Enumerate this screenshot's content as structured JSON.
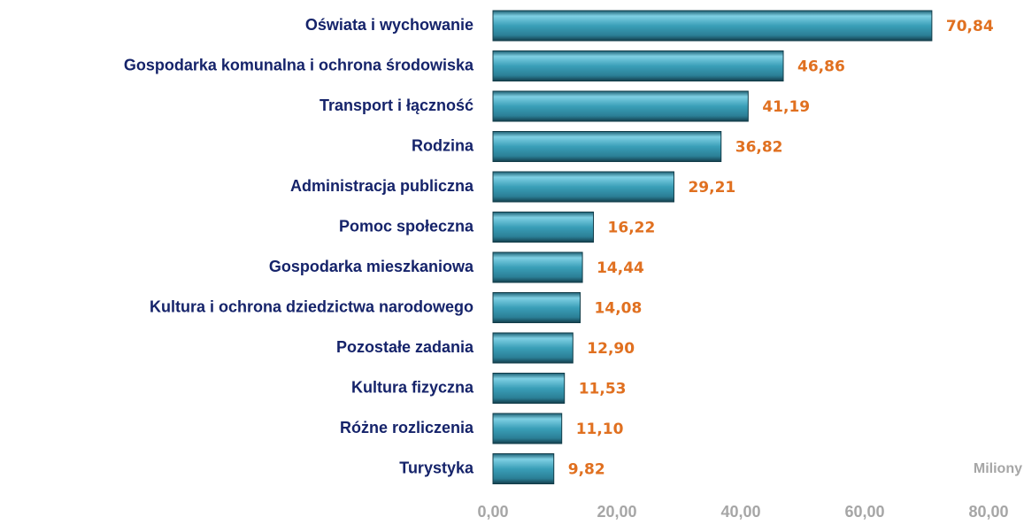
{
  "chart_data": {
    "type": "barh",
    "categories": [
      "Oświata i wychowanie",
      "Gospodarka komunalna i ochrona środowiska",
      "Transport i łączność",
      "Rodzina",
      "Administracja publiczna",
      "Pomoc społeczna",
      "Gospodarka mieszkaniowa",
      "Kultura i ochrona dziedzictwa narodowego",
      "Pozostałe zadania",
      "Kultura fizyczna",
      "Różne rozliczenia",
      "Turystyka"
    ],
    "values": [
      70.84,
      46.86,
      41.19,
      36.82,
      29.21,
      16.22,
      14.44,
      14.08,
      12.9,
      11.53,
      11.1,
      9.82
    ],
    "value_labels": [
      "70,84",
      "46,86",
      "41,19",
      "36,82",
      "29,21",
      "16,22",
      "14,44",
      "14,08",
      "12,90",
      "11,53",
      "11,10",
      "9,82"
    ],
    "color": "#3a9fb8",
    "xlim": [
      0,
      80
    ],
    "xticks": [
      {
        "value": 0,
        "label": "0,00"
      },
      {
        "value": 20,
        "label": "20,00"
      },
      {
        "value": 40,
        "label": "40,00"
      },
      {
        "value": 60,
        "label": "60,00"
      },
      {
        "value": 80,
        "label": "80,00"
      }
    ],
    "annotation": "Miliony"
  }
}
